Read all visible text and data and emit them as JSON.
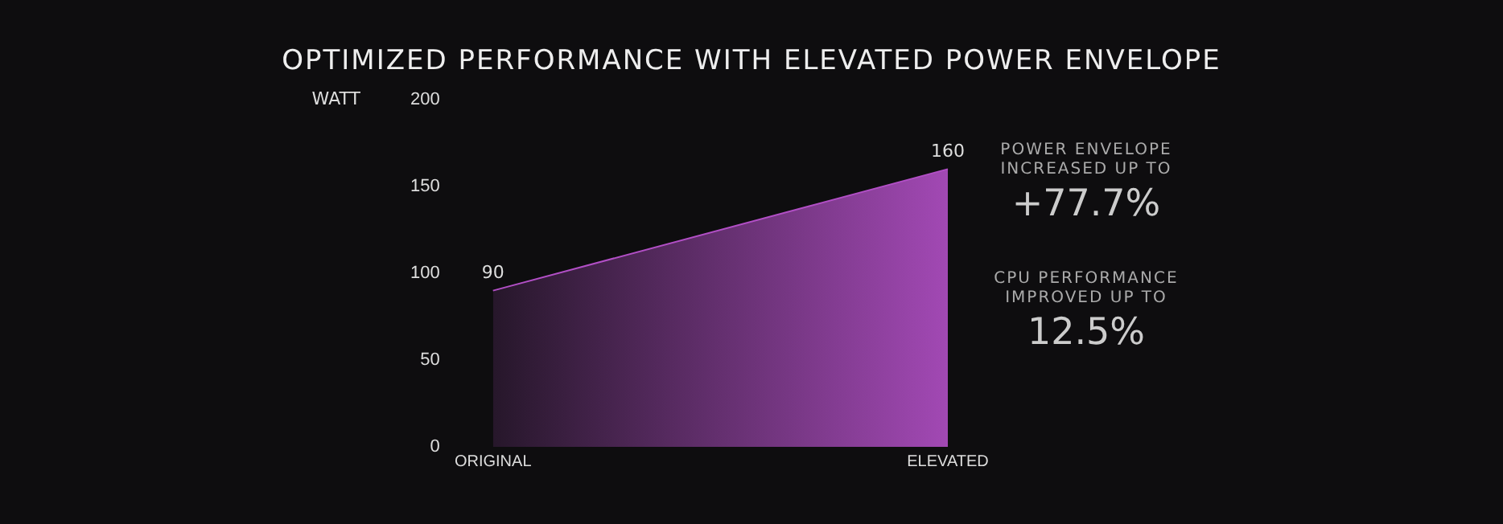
{
  "chart_data": {
    "type": "area",
    "title": "OPTIMIZED PERFORMANCE WITH ELEVATED POWER ENVELOPE",
    "ylabel": "WATT",
    "categories": [
      "ORIGINAL",
      "ELEVATED"
    ],
    "series": [
      {
        "color": "#b24fc6",
        "values": [
          90,
          160
        ]
      }
    ],
    "ylim": [
      0,
      200
    ],
    "yticks": [
      0,
      50,
      100,
      150,
      200
    ],
    "grid": false,
    "legend": false,
    "data_labels": true,
    "annotations": [
      "POWER ENVELOPE\nINCREASED UP TO",
      "+77.7%",
      "CPU PERFORMANCE\nIMPROVED UP TO",
      "12.5%"
    ]
  }
}
